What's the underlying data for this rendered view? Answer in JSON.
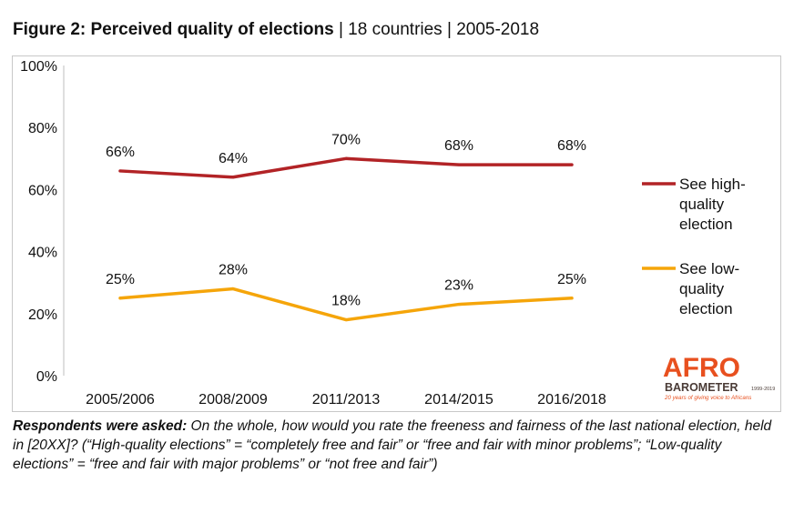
{
  "title": {
    "bold": "Figure 2: Perceived quality of elections",
    "sep1": " | ",
    "subtitle1": "18 countries",
    "sep2": " | ",
    "subtitle2": "2005-2018"
  },
  "chart_data": {
    "type": "line",
    "categories": [
      "2005/2006",
      "2008/2009",
      "2011/2013",
      "2014/2015",
      "2016/2018"
    ],
    "ylim": [
      0,
      100
    ],
    "yticks": [
      "0%",
      "20%",
      "40%",
      "60%",
      "80%",
      "100%"
    ],
    "grid": false,
    "legend_position": "right",
    "series": [
      {
        "name_lines": [
          "See high-",
          "quality",
          "election"
        ],
        "values": [
          66,
          64,
          70,
          68,
          68
        ],
        "labels": [
          "66%",
          "64%",
          "70%",
          "68%",
          "68%"
        ],
        "color": "#b22326"
      },
      {
        "name_lines": [
          "See low-",
          "quality",
          "election"
        ],
        "values": [
          25,
          28,
          18,
          23,
          25
        ],
        "labels": [
          "25%",
          "28%",
          "18%",
          "23%",
          "25%"
        ],
        "color": "#f5a50a"
      }
    ]
  },
  "note": {
    "bold": "Respondents were asked:",
    "text": " On the whole, how would you rate the freeness and fairness of the last national election, held in [20XX]? (“High-quality elections” = “completely free and fair” or “free and fair with minor problems”; “Low-quality elections” = “free and fair with major problems” or “not free and fair”)"
  },
  "logo": {
    "line1": "AFRO",
    "line2": "BAROMETER",
    "years": "1999-2019",
    "tagline": "20 years of giving voice to Africans",
    "color_orange": "#e8501f",
    "color_dark": "#4a3b36"
  }
}
